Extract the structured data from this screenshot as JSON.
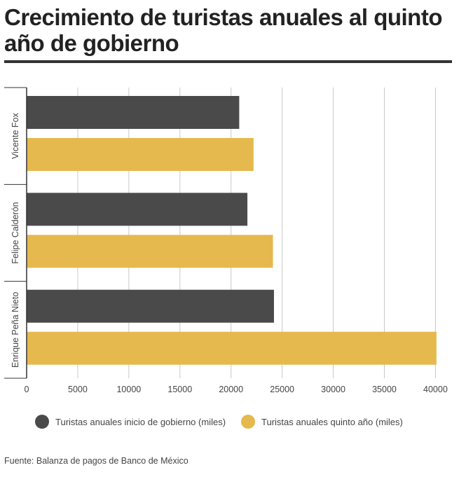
{
  "title": "Crecimiento de turistas anuales al quinto año de gobierno",
  "source": "Fuente: Balanza de pagos de Banco de México",
  "colors": {
    "start": "#4a4a4a",
    "fifth": "#e5b94e",
    "grid": "#c8c8c8",
    "axis": "#333333"
  },
  "chart_data": {
    "type": "bar",
    "orientation": "horizontal",
    "categories": [
      "Vicente Fox",
      "Felipe Calderón",
      "Enrique Peña Nieto"
    ],
    "series": [
      {
        "name": "Turistas anuales inicio de gobierno (miles)",
        "values": [
          20800,
          21600,
          24200
        ]
      },
      {
        "name": "Turistas anuales quinto año (miles)",
        "values": [
          22200,
          24100,
          40100
        ]
      }
    ],
    "xlim": [
      0,
      41000
    ],
    "xticks": [
      "0",
      "5000",
      "10000",
      "15000",
      "20000",
      "25000",
      "30000",
      "35000",
      "40000"
    ],
    "grid": true,
    "legend_position": "bottom"
  }
}
